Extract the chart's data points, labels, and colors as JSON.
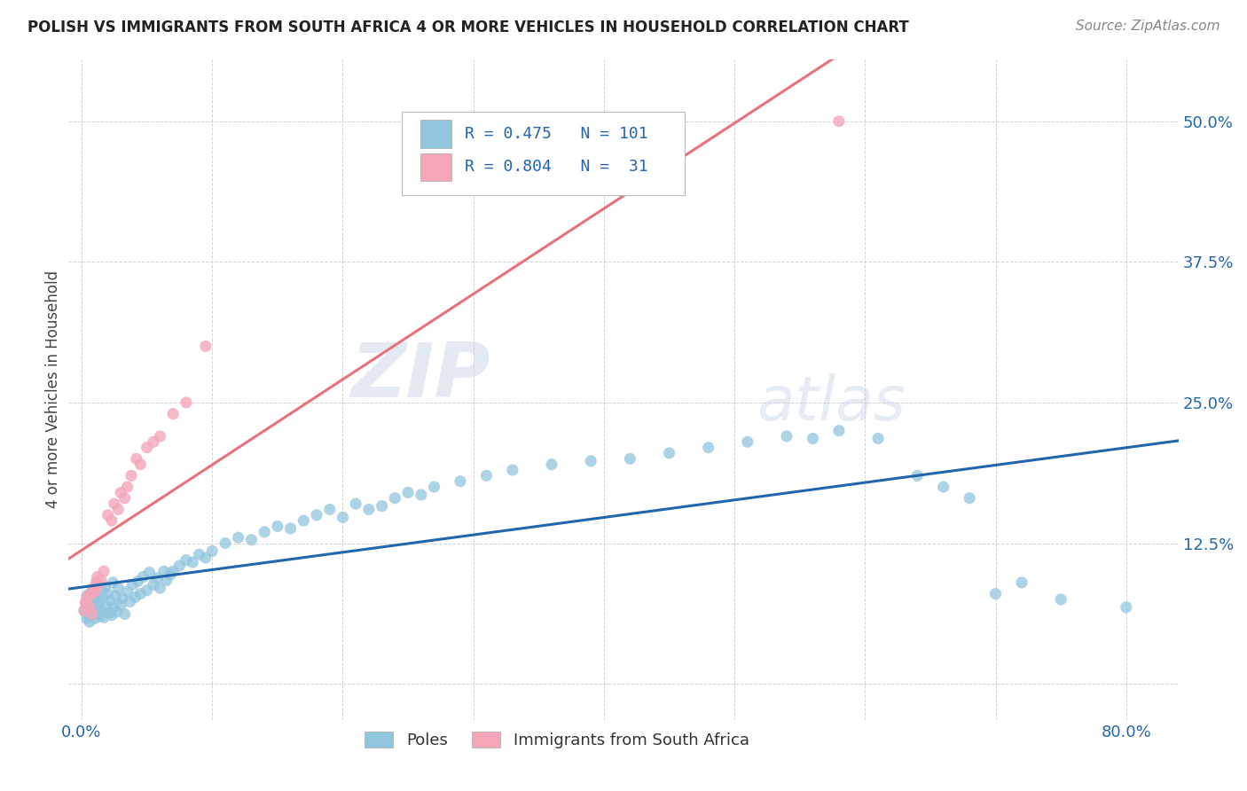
{
  "title": "POLISH VS IMMIGRANTS FROM SOUTH AFRICA 4 OR MORE VEHICLES IN HOUSEHOLD CORRELATION CHART",
  "source": "Source: ZipAtlas.com",
  "ylabel": "4 or more Vehicles in Household",
  "watermark_zip": "ZIP",
  "watermark_atlas": "atlas",
  "blue_R": 0.475,
  "blue_N": 101,
  "pink_R": 0.804,
  "pink_N": 31,
  "xlim": [
    -0.01,
    0.84
  ],
  "ylim": [
    -0.032,
    0.555
  ],
  "xtick_positions": [
    0.0,
    0.1,
    0.2,
    0.3,
    0.4,
    0.5,
    0.6,
    0.7,
    0.8
  ],
  "xticklabels": [
    "0.0%",
    "",
    "",
    "",
    "",
    "",
    "",
    "",
    "80.0%"
  ],
  "ytick_positions": [
    0.0,
    0.125,
    0.25,
    0.375,
    0.5
  ],
  "yticklabels": [
    "",
    "12.5%",
    "25.0%",
    "37.5%",
    "50.0%"
  ],
  "blue_color": "#92c5de",
  "pink_color": "#f4a6b8",
  "blue_line_color": "#2166ac",
  "pink_line_color": "#e8717a",
  "legend_label_blue": "Poles",
  "legend_label_pink": "Immigrants from South Africa",
  "blue_scatter_x": [
    0.002,
    0.003,
    0.004,
    0.004,
    0.005,
    0.005,
    0.006,
    0.006,
    0.007,
    0.007,
    0.008,
    0.008,
    0.009,
    0.009,
    0.01,
    0.01,
    0.011,
    0.011,
    0.012,
    0.012,
    0.013,
    0.013,
    0.014,
    0.015,
    0.015,
    0.016,
    0.017,
    0.018,
    0.019,
    0.02,
    0.021,
    0.022,
    0.023,
    0.024,
    0.025,
    0.026,
    0.027,
    0.028,
    0.03,
    0.031,
    0.033,
    0.035,
    0.037,
    0.039,
    0.041,
    0.043,
    0.045,
    0.047,
    0.05,
    0.052,
    0.055,
    0.058,
    0.06,
    0.063,
    0.065,
    0.068,
    0.07,
    0.075,
    0.08,
    0.085,
    0.09,
    0.095,
    0.1,
    0.11,
    0.12,
    0.13,
    0.14,
    0.15,
    0.16,
    0.17,
    0.18,
    0.19,
    0.2,
    0.21,
    0.22,
    0.23,
    0.24,
    0.25,
    0.26,
    0.27,
    0.29,
    0.31,
    0.33,
    0.36,
    0.39,
    0.42,
    0.45,
    0.48,
    0.51,
    0.54,
    0.56,
    0.58,
    0.61,
    0.64,
    0.66,
    0.68,
    0.7,
    0.72,
    0.75,
    0.8
  ],
  "blue_scatter_y": [
    0.065,
    0.072,
    0.058,
    0.078,
    0.06,
    0.075,
    0.055,
    0.08,
    0.068,
    0.073,
    0.062,
    0.082,
    0.07,
    0.076,
    0.058,
    0.085,
    0.063,
    0.079,
    0.067,
    0.088,
    0.071,
    0.074,
    0.06,
    0.083,
    0.065,
    0.077,
    0.059,
    0.086,
    0.069,
    0.08,
    0.063,
    0.074,
    0.061,
    0.09,
    0.068,
    0.078,
    0.064,
    0.085,
    0.07,
    0.076,
    0.062,
    0.082,
    0.073,
    0.088,
    0.077,
    0.091,
    0.08,
    0.095,
    0.083,
    0.099,
    0.088,
    0.094,
    0.085,
    0.1,
    0.092,
    0.097,
    0.1,
    0.105,
    0.11,
    0.108,
    0.115,
    0.112,
    0.118,
    0.125,
    0.13,
    0.128,
    0.135,
    0.14,
    0.138,
    0.145,
    0.15,
    0.155,
    0.148,
    0.16,
    0.155,
    0.158,
    0.165,
    0.17,
    0.168,
    0.175,
    0.18,
    0.185,
    0.19,
    0.195,
    0.198,
    0.2,
    0.205,
    0.21,
    0.215,
    0.22,
    0.218,
    0.225,
    0.218,
    0.185,
    0.175,
    0.165,
    0.08,
    0.09,
    0.075,
    0.068
  ],
  "pink_scatter_x": [
    0.002,
    0.003,
    0.004,
    0.005,
    0.006,
    0.007,
    0.008,
    0.009,
    0.01,
    0.011,
    0.012,
    0.013,
    0.015,
    0.017,
    0.02,
    0.023,
    0.025,
    0.028,
    0.03,
    0.033,
    0.035,
    0.038,
    0.042,
    0.045,
    0.05,
    0.055,
    0.06,
    0.07,
    0.08,
    0.095,
    0.58
  ],
  "pink_scatter_y": [
    0.065,
    0.072,
    0.075,
    0.078,
    0.068,
    0.08,
    0.062,
    0.085,
    0.082,
    0.09,
    0.095,
    0.088,
    0.092,
    0.1,
    0.15,
    0.145,
    0.16,
    0.155,
    0.17,
    0.165,
    0.175,
    0.185,
    0.2,
    0.195,
    0.21,
    0.215,
    0.22,
    0.24,
    0.25,
    0.3,
    0.5
  ],
  "background_color": "#ffffff",
  "grid_color": "#c8c8c8",
  "title_fontsize": 12,
  "tick_fontsize": 13,
  "ylabel_fontsize": 12,
  "source_fontsize": 11
}
